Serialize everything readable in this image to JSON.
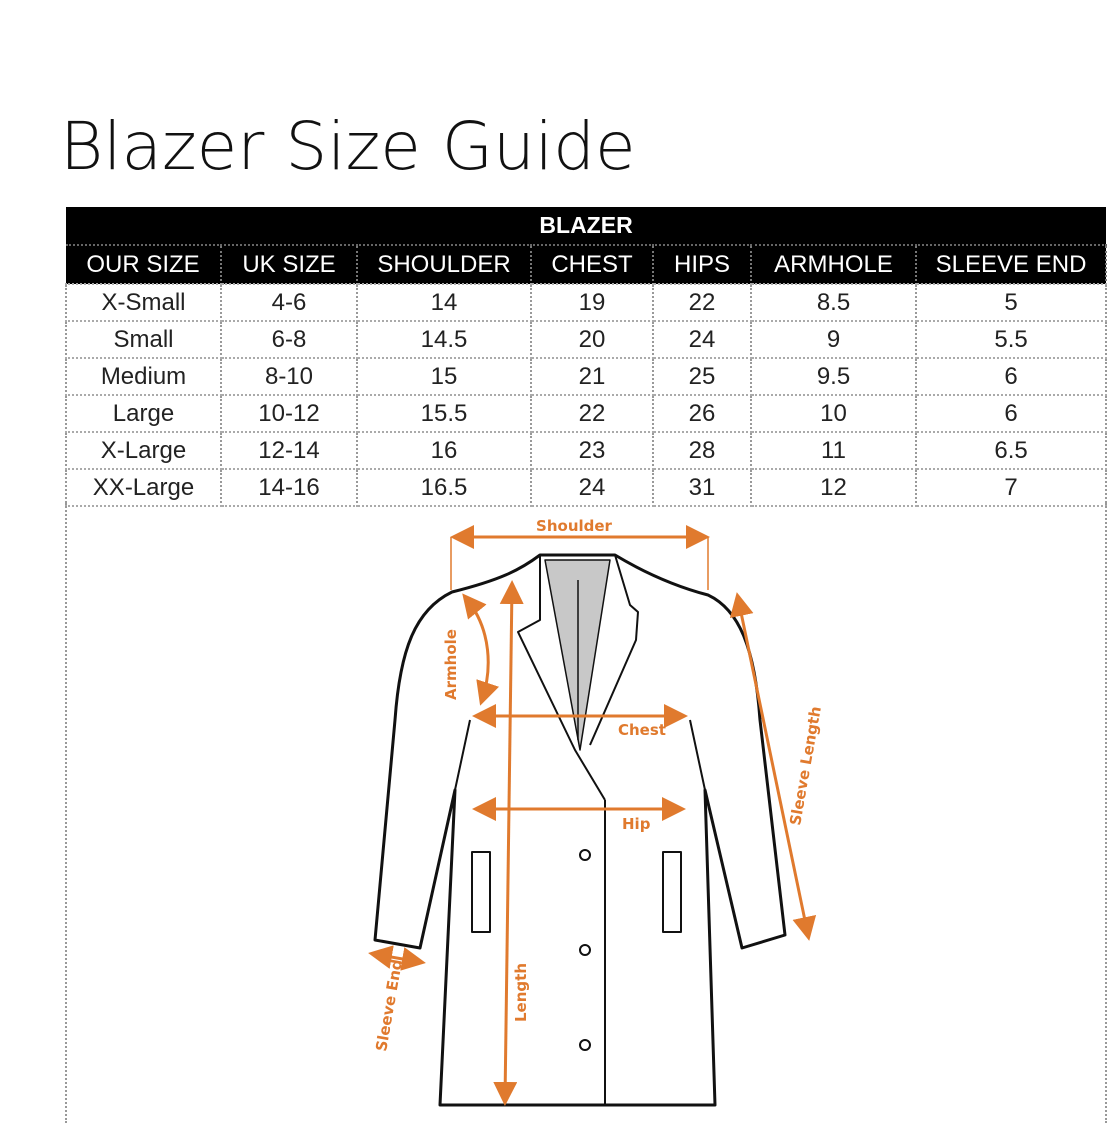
{
  "title": "Blazer Size Guide",
  "table": {
    "caption": "BLAZER",
    "headers": [
      "OUR SIZE",
      "UK SIZE",
      "SHOULDER",
      "CHEST",
      "HIPS",
      "ARMHOLE",
      "SLEEVE END"
    ],
    "rows": [
      [
        "X-Small",
        "4-6",
        "14",
        "19",
        "22",
        "8.5",
        "5"
      ],
      [
        "Small",
        "6-8",
        "14.5",
        "20",
        "24",
        "9",
        "5.5"
      ],
      [
        "Medium",
        "8-10",
        "15",
        "21",
        "25",
        "9.5",
        "6"
      ],
      [
        "Large",
        "10-12",
        "15.5",
        "22",
        "26",
        "10",
        "6"
      ],
      [
        "X-Large",
        "12-14",
        "16",
        "23",
        "28",
        "11",
        "6.5"
      ],
      [
        "XX-Large",
        "14-16",
        "16.5",
        "24",
        "31",
        "12",
        "7"
      ]
    ]
  },
  "diagram": {
    "labels": {
      "shoulder": "Shoulder",
      "armhole": "Armhole",
      "chest": "Chest",
      "hip": "Hip",
      "sleeve_length": "Sleeve Length",
      "sleeve_end": "Sleeve End",
      "length": "Length"
    },
    "accent_color": "#e07a2e"
  }
}
